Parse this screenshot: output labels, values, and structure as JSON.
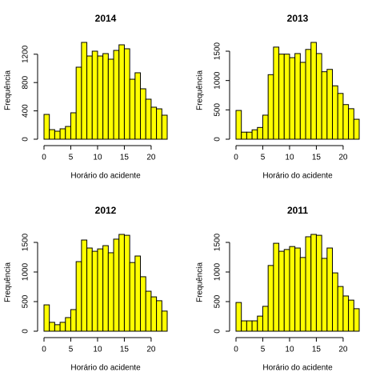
{
  "chart_data": [
    {
      "type": "histogram",
      "title": "2014",
      "xlabel": "Horário do acidente",
      "ylabel": "Frequência",
      "color": "#ffff00",
      "bins": [
        0,
        1,
        2,
        3,
        4,
        5,
        6,
        7,
        8,
        9,
        10,
        11,
        12,
        13,
        14,
        15,
        16,
        17,
        18,
        19,
        20,
        21,
        22,
        23
      ],
      "values": [
        350,
        135,
        113,
        147,
        180,
        373,
        1017,
        1367,
        1175,
        1243,
        1175,
        1209,
        1130,
        1254,
        1333,
        1277,
        847,
        938,
        712,
        565,
        452,
        429,
        339
      ],
      "xlim": [
        0,
        23
      ],
      "xticks": [
        0,
        5,
        10,
        15,
        20
      ],
      "ylim": [
        0,
        1367
      ],
      "yticks": [
        0,
        400,
        800,
        1200
      ]
    },
    {
      "type": "histogram",
      "title": "2013",
      "xlabel": "Horário do acidente",
      "ylabel": "Frequência",
      "color": "#ffff00",
      "bins": [
        0,
        1,
        2,
        3,
        4,
        5,
        6,
        7,
        8,
        9,
        10,
        11,
        12,
        13,
        14,
        15,
        16,
        17,
        18,
        19,
        20,
        21,
        22,
        23
      ],
      "values": [
        490,
        120,
        120,
        160,
        200,
        410,
        1100,
        1570,
        1450,
        1450,
        1390,
        1460,
        1310,
        1530,
        1650,
        1460,
        1150,
        1190,
        910,
        780,
        590,
        520,
        340
      ],
      "xlim": [
        0,
        23
      ],
      "xticks": [
        0,
        5,
        10,
        15,
        20
      ],
      "ylim": [
        0,
        1650
      ],
      "yticks": [
        0,
        500,
        1000,
        1500
      ]
    },
    {
      "type": "histogram",
      "title": "2012",
      "xlabel": "Horário do acidente",
      "ylabel": "Frequência",
      "color": "#ffff00",
      "bins": [
        0,
        1,
        2,
        3,
        4,
        5,
        6,
        7,
        8,
        9,
        10,
        11,
        12,
        13,
        14,
        15,
        16,
        17,
        18,
        19,
        20,
        21,
        22,
        23
      ],
      "values": [
        445,
        150,
        110,
        150,
        230,
        365,
        1175,
        1540,
        1405,
        1350,
        1390,
        1445,
        1325,
        1555,
        1635,
        1620,
        1160,
        1270,
        920,
        675,
        580,
        515,
        340
      ],
      "xlim": [
        0,
        23
      ],
      "xticks": [
        0,
        5,
        10,
        15,
        20
      ],
      "ylim": [
        0,
        1635
      ],
      "yticks": [
        0,
        500,
        1000,
        1500
      ]
    },
    {
      "type": "histogram",
      "title": "2011",
      "xlabel": "Horário do acidente",
      "ylabel": "Frequência",
      "color": "#ffff00",
      "bins": [
        0,
        1,
        2,
        3,
        4,
        5,
        6,
        7,
        8,
        9,
        10,
        11,
        12,
        13,
        14,
        15,
        16,
        17,
        18,
        19,
        20,
        21,
        22,
        23
      ],
      "values": [
        485,
        175,
        175,
        175,
        255,
        420,
        1110,
        1485,
        1350,
        1380,
        1430,
        1405,
        1245,
        1595,
        1635,
        1620,
        1230,
        1405,
        985,
        755,
        595,
        525,
        380
      ],
      "xlim": [
        0,
        23
      ],
      "xticks": [
        0,
        5,
        10,
        15,
        20
      ],
      "ylim": [
        0,
        1635
      ],
      "yticks": [
        0,
        500,
        1000,
        1500
      ]
    }
  ]
}
